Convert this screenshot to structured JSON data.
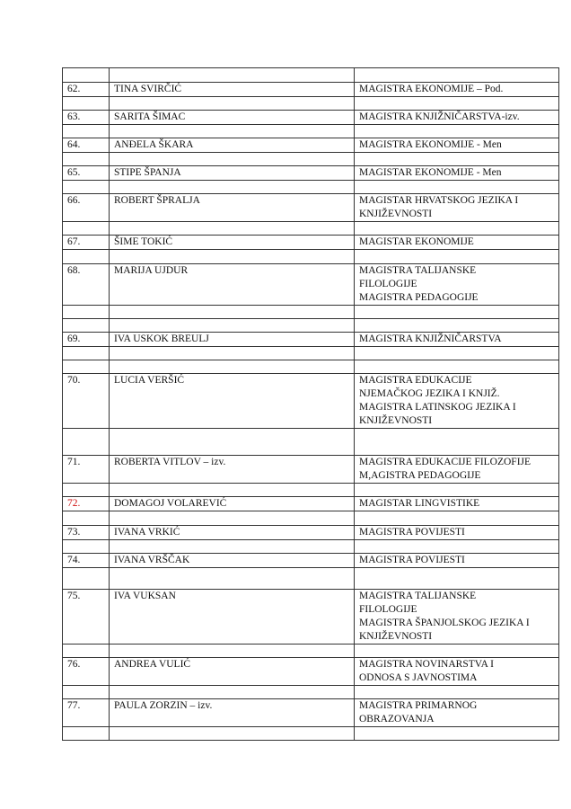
{
  "highlight_color": "#d01010",
  "rows": [
    {
      "num": "62.",
      "name": "TINA SVIRČIĆ",
      "degree": [
        "MAGISTRA EKONOMIJE – Pod."
      ]
    },
    {
      "num": "63.",
      "name": "SARITA ŠIMAC",
      "degree": [
        "MAGISTRA KNJIŽNIČARSTVA-izv."
      ]
    },
    {
      "num": "64.",
      "name": "ANĐELA ŠKARA",
      "degree": [
        "MAGISTRA EKONOMIJE - Men"
      ]
    },
    {
      "num": "65.",
      "name": "STIPE ŠPANJA",
      "degree": [
        "MAGISTAR EKONOMIJE - Men"
      ]
    },
    {
      "num": "66.",
      "name": "ROBERT ŠPRALJA",
      "degree": [
        "MAGISTAR HRVATSKOG JEZIKA I",
        "KNJIŽEVNOSTI"
      ]
    },
    {
      "num": "67.",
      "name": "ŠIME TOKIĆ",
      "degree": [
        "MAGISTAR EKONOMIJE"
      ]
    },
    {
      "num": "68.",
      "name": "MARIJA UJDUR",
      "degree": [
        "MAGISTRA TALIJANSKE",
        "FILOLOGIJE",
        "MAGISTRA PEDAGOGIJE"
      ]
    },
    {
      "num": "69.",
      "name": "IVA USKOK BREULJ",
      "degree": [
        "MAGISTRA KNJIŽNIČARSTVA"
      ]
    },
    {
      "num": "70.",
      "name": "LUCIA VERŠIĆ",
      "degree": [
        "MAGISTRA EDUKACIJE",
        "NJEMAČKOG JEZIKA I KNJIŽ.",
        "MAGISTRA LATINSKOG JEZIKA I",
        "KNJIŽEVNOSTI"
      ]
    },
    {
      "num": "71.",
      "name": "ROBERTA VITLOV – izv.",
      "degree": [
        "MAGISTRA EDUKACIJE FILOZOFIJE",
        "M,AGISTRA PEDAGOGIJE"
      ]
    },
    {
      "num": "72.",
      "name": "DOMAGOJ VOLAREVIĆ",
      "degree": [
        "MAGISTAR LINGVISTIKE"
      ],
      "highlight": true
    },
    {
      "num": "73.",
      "name": "IVANA VRKIĆ",
      "degree": [
        "MAGISTRA POVIJESTI"
      ]
    },
    {
      "num": "74.",
      "name": "IVANA VRŠČAK",
      "degree": [
        "MAGISTRA POVIJESTI"
      ]
    },
    {
      "num": "75.",
      "name": "IVA VUKSAN",
      "degree": [
        "MAGISTRA TALIJANSKE",
        "FILOLOGIJE",
        "MAGISTRA ŠPANJOLSKOG JEZIKA I",
        "KNJIŽEVNOSTI"
      ]
    },
    {
      "num": "76.",
      "name": "ANDREA VULIĆ",
      "degree": [
        "MAGISTRA NOVINARSTVA I",
        "ODNOSA S JAVNOSTIMA"
      ]
    },
    {
      "num": "77.",
      "name": "PAULA ZORZIN – izv.",
      "degree": [
        "MAGISTRA PRIMARNOG",
        "OBRAZOVANJA"
      ]
    }
  ]
}
